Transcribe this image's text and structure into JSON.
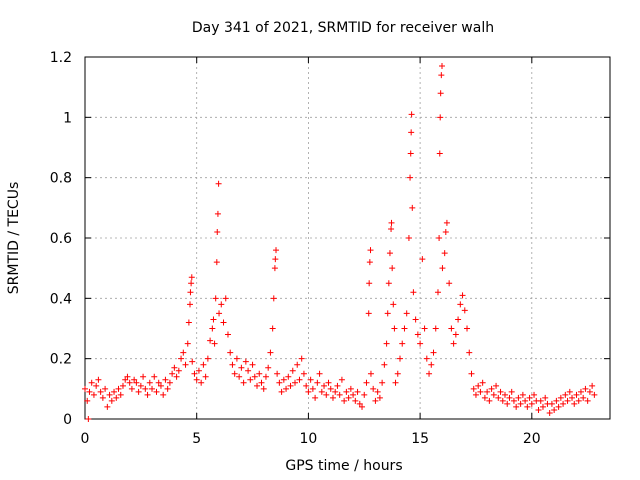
{
  "chart_data": {
    "type": "scatter",
    "title": "Day 341 of 2021, SRMTID for receiver walh",
    "xlabel": "GPS time / hours",
    "ylabel": "SRMTID / TECUs",
    "xlim": [
      0,
      23.5
    ],
    "ylim": [
      0,
      1.2
    ],
    "xticks": [
      0,
      5,
      10,
      15,
      20
    ],
    "xtick_labels": [
      "0",
      "5",
      "10",
      "15",
      "20"
    ],
    "yticks": [
      0,
      0.2,
      0.4,
      0.6,
      0.8,
      1.0,
      1.2
    ],
    "ytick_labels": [
      "0",
      "0.2",
      "0.4",
      "0.6",
      "0.8",
      "1",
      "1.2"
    ],
    "grid": true,
    "marker": "plus",
    "marker_color": "#ff0000",
    "series": [
      {
        "name": "SRMTID",
        "points": [
          [
            0.0,
            0.1
          ],
          [
            0.1,
            0.06
          ],
          [
            0.15,
            0.0
          ],
          [
            0.2,
            0.09
          ],
          [
            0.3,
            0.12
          ],
          [
            0.4,
            0.08
          ],
          [
            0.5,
            0.11
          ],
          [
            0.6,
            0.13
          ],
          [
            0.7,
            0.09
          ],
          [
            0.8,
            0.07
          ],
          [
            0.9,
            0.1
          ],
          [
            1.0,
            0.04
          ],
          [
            1.1,
            0.08
          ],
          [
            1.2,
            0.06
          ],
          [
            1.3,
            0.09
          ],
          [
            1.4,
            0.07
          ],
          [
            1.5,
            0.1
          ],
          [
            1.6,
            0.08
          ],
          [
            1.7,
            0.11
          ],
          [
            1.8,
            0.13
          ],
          [
            1.9,
            0.14
          ],
          [
            2.0,
            0.12
          ],
          [
            2.1,
            0.1
          ],
          [
            2.2,
            0.13
          ],
          [
            2.3,
            0.12
          ],
          [
            2.4,
            0.09
          ],
          [
            2.5,
            0.11
          ],
          [
            2.6,
            0.14
          ],
          [
            2.7,
            0.1
          ],
          [
            2.8,
            0.08
          ],
          [
            2.9,
            0.12
          ],
          [
            3.0,
            0.1
          ],
          [
            3.1,
            0.14
          ],
          [
            3.2,
            0.09
          ],
          [
            3.3,
            0.12
          ],
          [
            3.4,
            0.11
          ],
          [
            3.5,
            0.08
          ],
          [
            3.6,
            0.13
          ],
          [
            3.7,
            0.1
          ],
          [
            3.8,
            0.12
          ],
          [
            3.9,
            0.15
          ],
          [
            4.0,
            0.17
          ],
          [
            4.1,
            0.14
          ],
          [
            4.2,
            0.16
          ],
          [
            4.3,
            0.2
          ],
          [
            4.4,
            0.22
          ],
          [
            4.5,
            0.18
          ],
          [
            4.6,
            0.25
          ],
          [
            4.65,
            0.32
          ],
          [
            4.7,
            0.38
          ],
          [
            4.72,
            0.42
          ],
          [
            4.75,
            0.45
          ],
          [
            4.78,
            0.47
          ],
          [
            4.8,
            0.19
          ],
          [
            4.9,
            0.15
          ],
          [
            5.0,
            0.13
          ],
          [
            5.1,
            0.16
          ],
          [
            5.2,
            0.12
          ],
          [
            5.3,
            0.18
          ],
          [
            5.4,
            0.14
          ],
          [
            5.5,
            0.2
          ],
          [
            5.6,
            0.26
          ],
          [
            5.7,
            0.3
          ],
          [
            5.75,
            0.33
          ],
          [
            5.8,
            0.25
          ],
          [
            5.85,
            0.4
          ],
          [
            5.9,
            0.52
          ],
          [
            5.92,
            0.62
          ],
          [
            5.95,
            0.68
          ],
          [
            5.98,
            0.78
          ],
          [
            6.0,
            0.35
          ],
          [
            6.1,
            0.38
          ],
          [
            6.2,
            0.32
          ],
          [
            6.3,
            0.4
          ],
          [
            6.4,
            0.28
          ],
          [
            6.5,
            0.22
          ],
          [
            6.6,
            0.18
          ],
          [
            6.7,
            0.15
          ],
          [
            6.8,
            0.2
          ],
          [
            6.9,
            0.14
          ],
          [
            7.0,
            0.17
          ],
          [
            7.1,
            0.12
          ],
          [
            7.2,
            0.19
          ],
          [
            7.3,
            0.16
          ],
          [
            7.4,
            0.13
          ],
          [
            7.5,
            0.18
          ],
          [
            7.6,
            0.14
          ],
          [
            7.7,
            0.11
          ],
          [
            7.8,
            0.15
          ],
          [
            7.9,
            0.12
          ],
          [
            8.0,
            0.1
          ],
          [
            8.1,
            0.14
          ],
          [
            8.2,
            0.17
          ],
          [
            8.3,
            0.22
          ],
          [
            8.4,
            0.3
          ],
          [
            8.45,
            0.4
          ],
          [
            8.5,
            0.5
          ],
          [
            8.52,
            0.53
          ],
          [
            8.55,
            0.56
          ],
          [
            8.6,
            0.15
          ],
          [
            8.7,
            0.12
          ],
          [
            8.8,
            0.09
          ],
          [
            8.9,
            0.13
          ],
          [
            9.0,
            0.1
          ],
          [
            9.1,
            0.14
          ],
          [
            9.2,
            0.11
          ],
          [
            9.3,
            0.16
          ],
          [
            9.4,
            0.12
          ],
          [
            9.5,
            0.18
          ],
          [
            9.6,
            0.13
          ],
          [
            9.7,
            0.2
          ],
          [
            9.8,
            0.15
          ],
          [
            9.9,
            0.11
          ],
          [
            10.0,
            0.09
          ],
          [
            10.1,
            0.13
          ],
          [
            10.2,
            0.1
          ],
          [
            10.3,
            0.07
          ],
          [
            10.4,
            0.12
          ],
          [
            10.5,
            0.15
          ],
          [
            10.6,
            0.09
          ],
          [
            10.7,
            0.11
          ],
          [
            10.8,
            0.08
          ],
          [
            10.9,
            0.12
          ],
          [
            11.0,
            0.1
          ],
          [
            11.1,
            0.07
          ],
          [
            11.2,
            0.09
          ],
          [
            11.3,
            0.11
          ],
          [
            11.4,
            0.08
          ],
          [
            11.5,
            0.13
          ],
          [
            11.6,
            0.06
          ],
          [
            11.7,
            0.09
          ],
          [
            11.8,
            0.07
          ],
          [
            11.9,
            0.1
          ],
          [
            12.0,
            0.08
          ],
          [
            12.1,
            0.06
          ],
          [
            12.2,
            0.09
          ],
          [
            12.3,
            0.05
          ],
          [
            12.4,
            0.04
          ],
          [
            12.5,
            0.08
          ],
          [
            12.6,
            0.12
          ],
          [
            12.7,
            0.35
          ],
          [
            12.72,
            0.45
          ],
          [
            12.75,
            0.52
          ],
          [
            12.78,
            0.56
          ],
          [
            12.8,
            0.15
          ],
          [
            12.9,
            0.1
          ],
          [
            13.0,
            0.06
          ],
          [
            13.1,
            0.09
          ],
          [
            13.2,
            0.07
          ],
          [
            13.3,
            0.12
          ],
          [
            13.4,
            0.18
          ],
          [
            13.5,
            0.25
          ],
          [
            13.55,
            0.35
          ],
          [
            13.6,
            0.45
          ],
          [
            13.65,
            0.55
          ],
          [
            13.7,
            0.63
          ],
          [
            13.72,
            0.65
          ],
          [
            13.75,
            0.5
          ],
          [
            13.8,
            0.38
          ],
          [
            13.85,
            0.3
          ],
          [
            13.9,
            0.12
          ],
          [
            14.0,
            0.15
          ],
          [
            14.1,
            0.2
          ],
          [
            14.2,
            0.25
          ],
          [
            14.3,
            0.3
          ],
          [
            14.4,
            0.35
          ],
          [
            14.5,
            0.6
          ],
          [
            14.55,
            0.8
          ],
          [
            14.58,
            0.88
          ],
          [
            14.6,
            0.95
          ],
          [
            14.62,
            1.01
          ],
          [
            14.65,
            0.7
          ],
          [
            14.7,
            0.42
          ],
          [
            14.8,
            0.33
          ],
          [
            14.9,
            0.28
          ],
          [
            15.0,
            0.25
          ],
          [
            15.1,
            0.53
          ],
          [
            15.2,
            0.3
          ],
          [
            15.3,
            0.2
          ],
          [
            15.4,
            0.15
          ],
          [
            15.5,
            0.18
          ],
          [
            15.6,
            0.22
          ],
          [
            15.7,
            0.3
          ],
          [
            15.8,
            0.42
          ],
          [
            15.85,
            0.6
          ],
          [
            15.88,
            0.88
          ],
          [
            15.9,
            1.0
          ],
          [
            15.92,
            1.08
          ],
          [
            15.95,
            1.14
          ],
          [
            15.98,
            1.17
          ],
          [
            16.0,
            0.5
          ],
          [
            16.1,
            0.55
          ],
          [
            16.15,
            0.62
          ],
          [
            16.2,
            0.65
          ],
          [
            16.3,
            0.45
          ],
          [
            16.4,
            0.3
          ],
          [
            16.5,
            0.25
          ],
          [
            16.6,
            0.28
          ],
          [
            16.7,
            0.33
          ],
          [
            16.8,
            0.38
          ],
          [
            16.9,
            0.41
          ],
          [
            17.0,
            0.36
          ],
          [
            17.1,
            0.3
          ],
          [
            17.2,
            0.22
          ],
          [
            17.3,
            0.15
          ],
          [
            17.4,
            0.1
          ],
          [
            17.5,
            0.08
          ],
          [
            17.6,
            0.11
          ],
          [
            17.7,
            0.09
          ],
          [
            17.8,
            0.12
          ],
          [
            17.9,
            0.07
          ],
          [
            18.0,
            0.09
          ],
          [
            18.1,
            0.06
          ],
          [
            18.2,
            0.1
          ],
          [
            18.3,
            0.08
          ],
          [
            18.4,
            0.11
          ],
          [
            18.5,
            0.07
          ],
          [
            18.6,
            0.09
          ],
          [
            18.7,
            0.06
          ],
          [
            18.8,
            0.08
          ],
          [
            18.9,
            0.05
          ],
          [
            19.0,
            0.07
          ],
          [
            19.1,
            0.09
          ],
          [
            19.2,
            0.06
          ],
          [
            19.3,
            0.04
          ],
          [
            19.4,
            0.07
          ],
          [
            19.5,
            0.05
          ],
          [
            19.6,
            0.08
          ],
          [
            19.7,
            0.06
          ],
          [
            19.8,
            0.04
          ],
          [
            19.9,
            0.07
          ],
          [
            20.0,
            0.05
          ],
          [
            20.1,
            0.08
          ],
          [
            20.2,
            0.06
          ],
          [
            20.3,
            0.03
          ],
          [
            20.4,
            0.06
          ],
          [
            20.5,
            0.04
          ],
          [
            20.6,
            0.07
          ],
          [
            20.7,
            0.05
          ],
          [
            20.8,
            0.02
          ],
          [
            20.9,
            0.05
          ],
          [
            21.0,
            0.03
          ],
          [
            21.1,
            0.06
          ],
          [
            21.2,
            0.04
          ],
          [
            21.3,
            0.07
          ],
          [
            21.4,
            0.05
          ],
          [
            21.5,
            0.08
          ],
          [
            21.6,
            0.06
          ],
          [
            21.7,
            0.09
          ],
          [
            21.8,
            0.07
          ],
          [
            21.9,
            0.05
          ],
          [
            22.0,
            0.08
          ],
          [
            22.1,
            0.06
          ],
          [
            22.2,
            0.09
          ],
          [
            22.3,
            0.07
          ],
          [
            22.4,
            0.1
          ],
          [
            22.5,
            0.06
          ],
          [
            22.6,
            0.09
          ],
          [
            22.7,
            0.11
          ],
          [
            22.8,
            0.08
          ]
        ]
      }
    ]
  }
}
